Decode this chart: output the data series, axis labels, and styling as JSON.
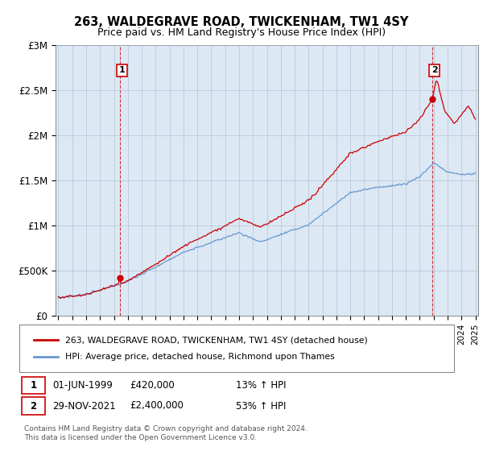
{
  "title": "263, WALDEGRAVE ROAD, TWICKENHAM, TW1 4SY",
  "subtitle": "Price paid vs. HM Land Registry's House Price Index (HPI)",
  "ylabel_ticks": [
    "£0",
    "£500K",
    "£1M",
    "£1.5M",
    "£2M",
    "£2.5M",
    "£3M"
  ],
  "ytick_values": [
    0,
    500000,
    1000000,
    1500000,
    2000000,
    2500000,
    3000000
  ],
  "ylim": [
    0,
    3000000
  ],
  "xlim_start": 1995,
  "xlim_end": 2025,
  "red_color": "#cc0000",
  "blue_color": "#6699cc",
  "chart_bg_color": "#dde8f5",
  "marker1_year": 1999.42,
  "marker1_value": 420000,
  "marker1_label": "1",
  "marker1_date": "01-JUN-1999",
  "marker1_price": "£420,000",
  "marker1_hpi": "13% ↑ HPI",
  "marker2_year": 2021.91,
  "marker2_value": 2400000,
  "marker2_label": "2",
  "marker2_date": "29-NOV-2021",
  "marker2_price": "£2,400,000",
  "marker2_hpi": "53% ↑ HPI",
  "legend_line1": "263, WALDEGRAVE ROAD, TWICKENHAM, TW1 4SY (detached house)",
  "legend_line2": "HPI: Average price, detached house, Richmond upon Thames",
  "footnote": "Contains HM Land Registry data © Crown copyright and database right 2024.\nThis data is licensed under the Open Government Licence v3.0.",
  "background_color": "#ffffff",
  "grid_color": "#aabbcc"
}
